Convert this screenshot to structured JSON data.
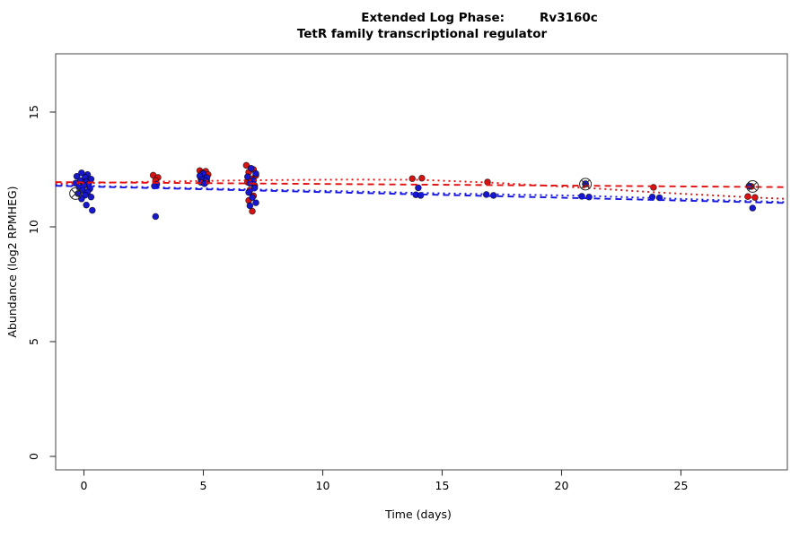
{
  "figure": {
    "background": "#ffffff",
    "title_line1_left": "Extended Log Phase:",
    "title_line1_right": "Rv3160c",
    "title_line2": "TetR family transcriptional regulator"
  },
  "chart_data": {
    "type": "scatter",
    "title": "Extended Log Phase: Rv3160c — TetR family transcriptional regulator",
    "xlabel": "Time  (days)",
    "ylabel": "Abundance  (log2 RPMHEG)",
    "xlim": [
      -1.2,
      29.4
    ],
    "ylim": [
      -0.6,
      17.5
    ],
    "grid": false,
    "legend": "none",
    "x_ticks": [
      0,
      5,
      10,
      15,
      20,
      25
    ],
    "y_ticks": [
      0,
      5,
      10,
      15
    ],
    "colors": {
      "red_series": "#d41414",
      "blue_series": "#1717cf",
      "marker_outline": "#2b2b2b",
      "axis": "#444444"
    },
    "series": [
      {
        "name": "condition-red",
        "type": "points",
        "color": "#d41414",
        "points": [
          [
            -0.05,
            11.95
          ],
          [
            0.12,
            11.84
          ],
          [
            2.9,
            12.25
          ],
          [
            3.1,
            12.15
          ],
          [
            3.0,
            12.02
          ],
          [
            4.85,
            12.45
          ],
          [
            5.1,
            12.42
          ],
          [
            4.95,
            12.34
          ],
          [
            5.2,
            12.28
          ],
          [
            5.0,
            12.2
          ],
          [
            4.9,
            12.1
          ],
          [
            5.15,
            11.98
          ],
          [
            5.05,
            11.92
          ],
          [
            6.8,
            12.68
          ],
          [
            7.1,
            12.5
          ],
          [
            6.9,
            12.38
          ],
          [
            7.2,
            12.24
          ],
          [
            7.0,
            12.1
          ],
          [
            6.85,
            11.95
          ],
          [
            7.15,
            11.8
          ],
          [
            6.95,
            11.6
          ],
          [
            7.1,
            11.35
          ],
          [
            6.9,
            11.15
          ],
          [
            7.05,
            10.68
          ],
          [
            13.75,
            12.1
          ],
          [
            14.15,
            12.12
          ],
          [
            16.9,
            11.95
          ],
          [
            21.0,
            11.86
          ],
          [
            23.85,
            11.72
          ],
          [
            27.95,
            11.76
          ],
          [
            27.8,
            11.32
          ],
          [
            28.1,
            11.28
          ]
        ]
      },
      {
        "name": "condition-blue",
        "type": "points",
        "color": "#1717cf",
        "points": [
          [
            -0.1,
            12.35
          ],
          [
            0.15,
            12.28
          ],
          [
            -0.3,
            12.2
          ],
          [
            0.05,
            12.15
          ],
          [
            0.3,
            12.08
          ],
          [
            -0.15,
            12.02
          ],
          [
            0.1,
            11.96
          ],
          [
            -0.35,
            11.9
          ],
          [
            0.2,
            11.86
          ],
          [
            0.0,
            11.8
          ],
          [
            -0.2,
            11.72
          ],
          [
            0.25,
            11.66
          ],
          [
            -0.05,
            11.6
          ],
          [
            0.15,
            11.52
          ],
          [
            -0.25,
            11.45
          ],
          [
            0.05,
            11.38
          ],
          [
            0.3,
            11.3
          ],
          [
            -0.1,
            11.22
          ],
          [
            0.1,
            10.95
          ],
          [
            0.35,
            10.72
          ],
          [
            3.05,
            11.86
          ],
          [
            2.95,
            11.78
          ],
          [
            3.0,
            10.45
          ],
          [
            5.0,
            12.32
          ],
          [
            4.85,
            12.22
          ],
          [
            5.15,
            12.14
          ],
          [
            4.95,
            12.06
          ],
          [
            5.1,
            12.0
          ],
          [
            4.9,
            11.94
          ],
          [
            5.05,
            11.88
          ],
          [
            7.0,
            12.55
          ],
          [
            7.2,
            12.32
          ],
          [
            6.85,
            12.18
          ],
          [
            7.1,
            12.02
          ],
          [
            6.95,
            11.9
          ],
          [
            7.15,
            11.7
          ],
          [
            6.9,
            11.5
          ],
          [
            7.05,
            11.28
          ],
          [
            7.2,
            11.05
          ],
          [
            6.95,
            10.92
          ],
          [
            14.0,
            11.7
          ],
          [
            13.9,
            11.4
          ],
          [
            14.1,
            11.37
          ],
          [
            16.85,
            11.41
          ],
          [
            17.15,
            11.37
          ],
          [
            20.85,
            11.33
          ],
          [
            21.15,
            11.3
          ],
          [
            21.0,
            11.88
          ],
          [
            23.8,
            11.3
          ],
          [
            24.1,
            11.27
          ],
          [
            27.85,
            11.78
          ],
          [
            28.0,
            10.82
          ]
        ]
      }
    ],
    "fit_lines": [
      {
        "name": "red-linear-fit",
        "color": "#e01010",
        "style": "dashed",
        "points": [
          [
            -1.2,
            11.95
          ],
          [
            29.4,
            11.73
          ]
        ]
      },
      {
        "name": "red-smooth-fit",
        "color": "#e01010",
        "style": "dotted",
        "points": [
          [
            -1.2,
            11.88
          ],
          [
            3,
            11.97
          ],
          [
            7,
            12.03
          ],
          [
            11,
            12.06
          ],
          [
            14,
            12.05
          ],
          [
            17,
            11.93
          ],
          [
            21,
            11.7
          ],
          [
            24,
            11.5
          ],
          [
            28,
            11.28
          ],
          [
            29.4,
            11.22
          ]
        ]
      },
      {
        "name": "blue-linear-fit",
        "color": "#1515e0",
        "style": "dashed",
        "points": [
          [
            -1.2,
            11.79
          ],
          [
            29.4,
            11.04
          ]
        ]
      },
      {
        "name": "blue-smooth-fit",
        "color": "#1515e0",
        "style": "dotted",
        "points": [
          [
            -1.2,
            11.82
          ],
          [
            3,
            11.72
          ],
          [
            7,
            11.63
          ],
          [
            11,
            11.55
          ],
          [
            14,
            11.48
          ],
          [
            17,
            11.42
          ],
          [
            21,
            11.35
          ],
          [
            24,
            11.25
          ],
          [
            28,
            11.12
          ],
          [
            29.4,
            11.08
          ]
        ]
      }
    ],
    "circle_x_markers": [
      {
        "x": -0.35,
        "y": 11.45
      },
      {
        "x": 21.0,
        "y": 11.86
      },
      {
        "x": 28.0,
        "y": 11.76
      }
    ]
  }
}
